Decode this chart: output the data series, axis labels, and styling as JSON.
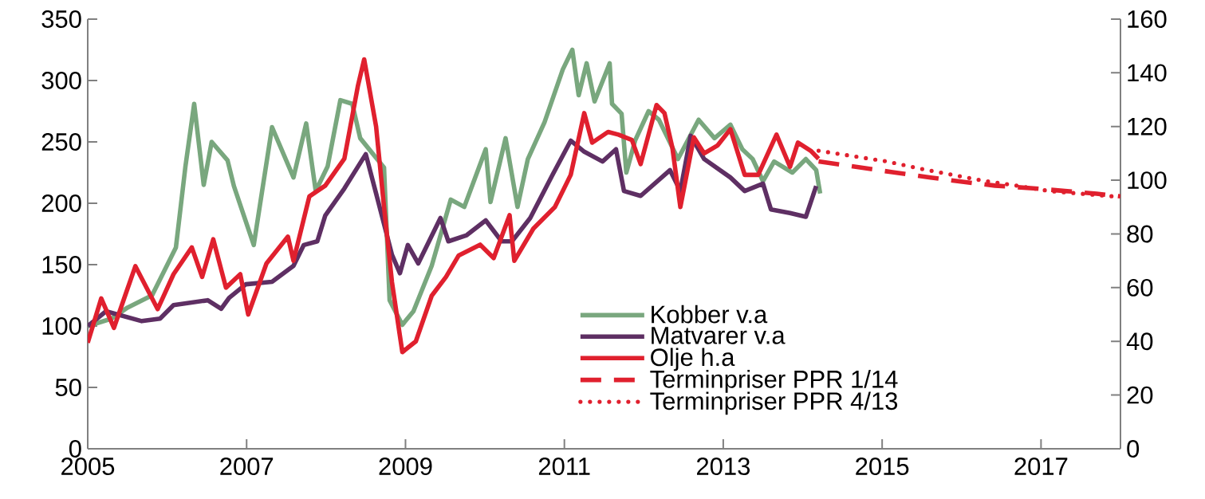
{
  "chart_data": {
    "type": "line",
    "xlim": [
      2005,
      2018
    ],
    "xticks": [
      2005,
      2007,
      2009,
      2011,
      2013,
      2015,
      2017
    ],
    "ylim": [
      0,
      350
    ],
    "yticks": [
      0,
      50,
      100,
      150,
      200,
      250,
      300,
      350
    ],
    "y2lim": [
      0,
      160
    ],
    "y2ticks": [
      0,
      20,
      40,
      60,
      80,
      100,
      120,
      140,
      160
    ],
    "legend": "bottom",
    "series": [
      {
        "name": "Kobber v.a",
        "color": "#79a77e",
        "axis": "y",
        "line_style": "solid",
        "x": [
          2005.0,
          2005.3,
          2005.5,
          2005.81,
          2006.11,
          2006.23,
          2006.34,
          2006.46,
          2006.56,
          2006.76,
          2006.84,
          2007.09,
          2007.32,
          2007.59,
          2007.75,
          2007.87,
          2008.02,
          2008.18,
          2008.33,
          2008.43,
          2008.73,
          2008.8,
          2008.96,
          2009.1,
          2009.33,
          2009.57,
          2009.74,
          2010.01,
          2010.07,
          2010.26,
          2010.41,
          2010.54,
          2010.75,
          2010.98,
          2011.1,
          2011.18,
          2011.28,
          2011.38,
          2011.57,
          2011.6,
          2011.72,
          2011.78,
          2011.89,
          2012.06,
          2012.19,
          2012.43,
          2012.69,
          2012.89,
          2013.09,
          2013.24,
          2013.37,
          2013.5,
          2013.64,
          2013.87,
          2014.04,
          2014.17,
          2014.22
        ],
        "values": [
          100,
          106,
          115,
          125,
          164,
          230,
          281,
          215,
          250,
          235,
          214,
          166,
          262,
          221,
          265,
          210,
          230,
          284,
          281,
          253,
          229,
          121,
          101,
          112,
          149,
          203,
          197,
          244,
          201,
          253,
          197,
          236,
          266,
          309,
          325,
          288,
          314,
          283,
          314,
          281,
          273,
          225,
          251,
          275,
          268,
          236,
          268,
          253,
          264,
          244,
          236,
          218,
          234,
          225,
          236,
          227,
          208
        ]
      },
      {
        "name": "Matvarer v.a",
        "color": "#5e2f63",
        "axis": "y",
        "line_style": "solid",
        "x": [
          2005.0,
          2005.23,
          2005.68,
          2005.91,
          2006.08,
          2006.51,
          2006.68,
          2006.78,
          2006.99,
          2007.32,
          2007.59,
          2007.72,
          2007.89,
          2007.99,
          2008.23,
          2008.5,
          2008.63,
          2008.83,
          2008.93,
          2009.03,
          2009.16,
          2009.44,
          2009.54,
          2009.77,
          2010.01,
          2010.21,
          2010.34,
          2010.57,
          2010.85,
          2011.08,
          2011.25,
          2011.48,
          2011.65,
          2011.75,
          2011.96,
          2012.33,
          2012.46,
          2012.59,
          2012.76,
          2013.09,
          2013.27,
          2013.5,
          2013.6,
          2013.84,
          2014.04,
          2014.17
        ],
        "values": [
          100,
          112,
          104,
          106,
          117,
          121,
          114,
          123,
          134,
          136,
          149,
          166,
          169,
          190,
          212,
          240,
          208,
          158,
          143,
          166,
          151,
          188,
          169,
          174,
          186,
          169,
          169,
          188,
          223,
          251,
          242,
          234,
          244,
          210,
          206,
          227,
          210,
          255,
          236,
          221,
          210,
          216,
          195,
          192,
          189,
          214
        ]
      },
      {
        "name": "Olje h.a",
        "color": "#e0202e",
        "axis": "y2",
        "line_style": "solid",
        "x": [
          2005.0,
          2005.17,
          2005.33,
          2005.47,
          2005.6,
          2005.88,
          2006.08,
          2006.31,
          2006.44,
          2006.58,
          2006.74,
          2006.92,
          2007.02,
          2007.25,
          2007.52,
          2007.59,
          2007.79,
          2007.99,
          2008.23,
          2008.4,
          2008.48,
          2008.63,
          2008.73,
          2008.83,
          2008.93,
          2008.96,
          2009.13,
          2009.33,
          2009.51,
          2009.67,
          2009.94,
          2010.11,
          2010.31,
          2010.37,
          2010.61,
          2010.88,
          2011.08,
          2011.25,
          2011.35,
          2011.55,
          2011.68,
          2011.85,
          2011.96,
          2012.16,
          2012.26,
          2012.36,
          2012.46,
          2012.63,
          2012.76,
          2012.93,
          2013.09,
          2013.27,
          2013.44,
          2013.67,
          2013.84,
          2013.94,
          2014.1,
          2014.2
        ],
        "values": [
          39.5,
          56,
          45,
          57,
          68,
          52,
          65,
          75,
          64,
          78,
          60,
          65,
          50,
          69,
          79,
          70,
          94,
          98,
          108,
          135,
          145,
          120,
          90,
          62,
          42,
          36,
          40,
          57,
          64,
          72,
          76,
          71,
          87,
          70,
          82,
          90,
          102,
          125,
          114,
          118,
          117,
          115,
          106,
          128,
          125,
          112,
          90,
          116,
          110,
          113,
          119,
          102,
          102,
          117,
          105,
          114,
          111,
          108
        ]
      },
      {
        "name": "Terminpriser PPR 1/14",
        "color": "#e0202e",
        "axis": "y2",
        "line_style": "dashed",
        "x": [
          2014.2,
          2015.13,
          2015.61,
          2015.99,
          2016.42,
          2016.9,
          2017.3,
          2017.7,
          2018.0
        ],
        "values": [
          107,
          103,
          101,
          99.5,
          98,
          97,
          96,
          95,
          94
        ]
      },
      {
        "name": "Terminpriser PPR 4/13",
        "color": "#e0202e",
        "axis": "y2",
        "line_style": "dotted",
        "x": [
          2014.2,
          2015.06,
          2015.53,
          2015.89,
          2016.24,
          2016.69,
          2017.1,
          2017.9,
          2018.0
        ],
        "values": [
          111,
          107,
          104,
          102,
          100,
          98,
          96,
          94,
          93.5
        ]
      }
    ]
  }
}
